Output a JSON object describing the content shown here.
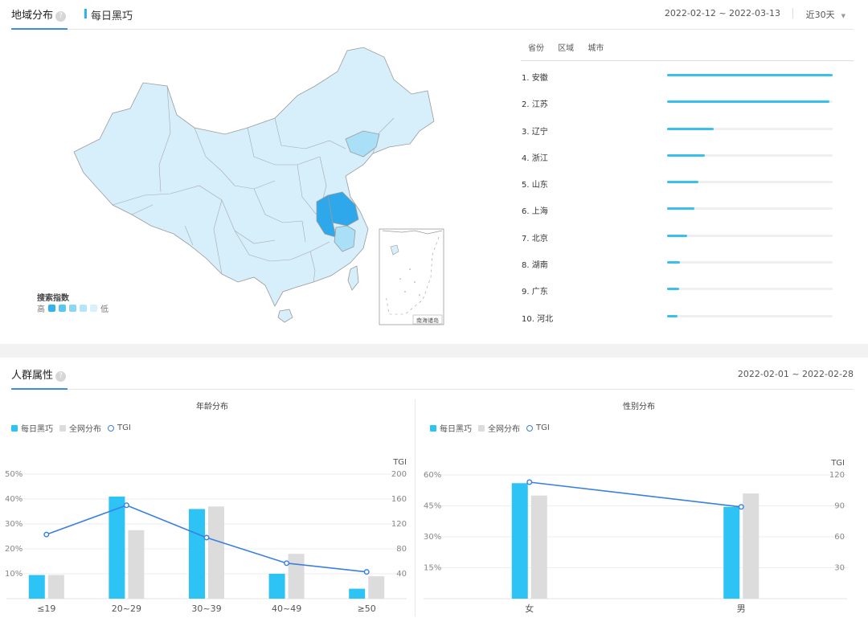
{
  "region_panel": {
    "tab_label": "地域分布",
    "help_glyph": "?",
    "keyword": "每日黑巧",
    "date_range": "2022-02-12 ~ 2022-03-13",
    "range_select": "近30天",
    "map": {
      "legend_title": "搜索指数",
      "legend_high": "高",
      "legend_low": "低",
      "inset_label": "南海诸岛",
      "legend_colors": [
        "#33b3ee",
        "#5cc6f2",
        "#8ad6f5",
        "#b5e5f8",
        "#d8f1fb"
      ],
      "highlighted": [
        {
          "province": "江苏",
          "color": "#2ea8ea"
        },
        {
          "province": "安徽",
          "color": "#2ea8ea"
        },
        {
          "province": "辽宁",
          "color": "#a9e0f8"
        },
        {
          "province": "浙江",
          "color": "#a9e0f8"
        }
      ]
    },
    "region_tabs": [
      "省份",
      "区域",
      "城市"
    ],
    "ranking": [
      {
        "label": "1.  安徽",
        "value": 1.0
      },
      {
        "label": "2.  江苏",
        "value": 0.98
      },
      {
        "label": "3.  辽宁",
        "value": 0.28
      },
      {
        "label": "4.  浙江",
        "value": 0.23
      },
      {
        "label": "5.  山东",
        "value": 0.19
      },
      {
        "label": "6.  上海",
        "value": 0.165
      },
      {
        "label": "7.  北京",
        "value": 0.12
      },
      {
        "label": "8.  湖南",
        "value": 0.08
      },
      {
        "label": "9.  广东",
        "value": 0.075
      },
      {
        "label": "10. 河北",
        "value": 0.065
      }
    ]
  },
  "crowd_panel": {
    "tab_label": "人群属性",
    "help_glyph": "?",
    "date_range": "2022-02-01 ~ 2022-02-28",
    "legend": [
      "每日黑巧",
      "全网分布",
      "TGI"
    ],
    "colors": {
      "keyword": "#2ec3f5",
      "overall": "#dcdcdc",
      "tgi": "#3a80e0"
    }
  },
  "chart_data": [
    {
      "type": "bar",
      "title": "年龄分布",
      "categories": [
        "≤19",
        "20~29",
        "30~39",
        "40~49",
        "≥50"
      ],
      "ylim": [
        0,
        50
      ],
      "y_ticks": [
        "50%",
        "40%",
        "30%",
        "20%",
        "10%"
      ],
      "y2label": "TGI",
      "y2lim": [
        0,
        200
      ],
      "y2_ticks": [
        "200",
        "160",
        "120",
        "80",
        "40"
      ],
      "series": [
        {
          "name": "每日黑巧",
          "values": [
            9.5,
            41,
            36,
            10,
            4
          ]
        },
        {
          "name": "全网分布",
          "values": [
            9.5,
            27.5,
            37,
            18,
            9
          ]
        },
        {
          "name": "TGI",
          "axis": "right",
          "values": [
            103,
            150,
            98,
            57,
            43
          ]
        }
      ]
    },
    {
      "type": "bar",
      "title": "性别分布",
      "categories": [
        "女",
        "男"
      ],
      "ylim": [
        0,
        60
      ],
      "y_ticks": [
        "60%",
        "45%",
        "30%",
        "15%"
      ],
      "y2label": "TGI",
      "y2lim": [
        0,
        120
      ],
      "y2_ticks": [
        "120",
        "90",
        "60",
        "30"
      ],
      "series": [
        {
          "name": "每日黑巧",
          "values": [
            56,
            44.5
          ]
        },
        {
          "name": "全网分布",
          "values": [
            50,
            51
          ]
        },
        {
          "name": "TGI",
          "axis": "right",
          "values": [
            113,
            89
          ]
        }
      ]
    }
  ]
}
